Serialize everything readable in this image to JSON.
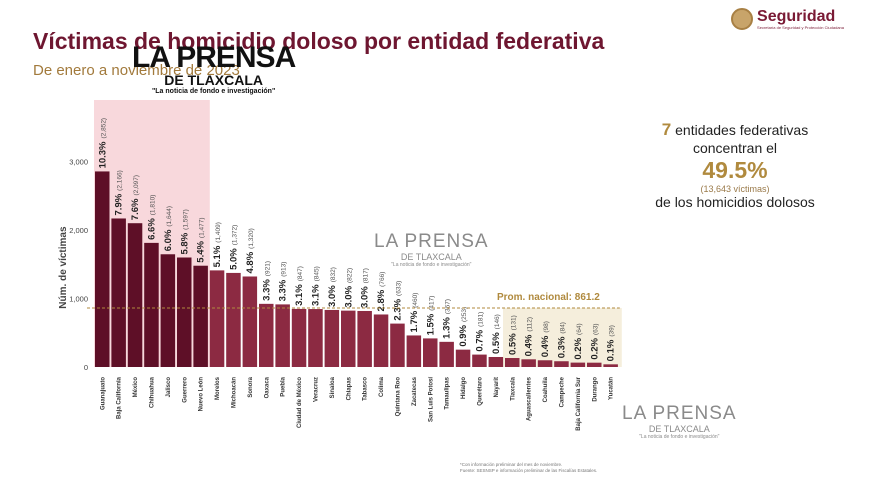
{
  "header": {
    "title": "Víctimas de homicidio doloso por entidad federativa",
    "subtitle": "De enero a noviembre de 2023",
    "logo_name": "Seguridad",
    "logo_tagline": "Secretaría de Seguridad y Protección Ciudadana"
  },
  "watermark": {
    "name": "LA PRENSA",
    "region": "DE TLAXCALA",
    "tagline": "\"La noticia de fondo e investigación\""
  },
  "summary": {
    "count": "7",
    "line1": "entidades federativas",
    "line2": "concentran el",
    "percent": "49.5%",
    "victims": "(13,643 víctimas)",
    "line3": "de los homicidios dolosos"
  },
  "footnote": {
    "line1": "*Con información preliminar del mes de noviembre.",
    "line2": "Fuente: SESNSP e información preliminar de las Fiscalías Estatales."
  },
  "chart_data": {
    "type": "bar",
    "ylabel": "Núm. de víctimas",
    "ylim": [
      0,
      3000
    ],
    "yticks": [
      0,
      1000,
      2000,
      3000
    ],
    "ytick_labels": [
      "0",
      "1,000",
      "2,000",
      "3,000"
    ],
    "grid": false,
    "categories": [
      "Guanajuato",
      "Baja California",
      "México",
      "Chihuahua",
      "Jalisco",
      "Guerrero",
      "Nuevo León",
      "Morelos",
      "Michoacán",
      "Sonora",
      "Oaxaca",
      "Puebla",
      "Ciudad de México",
      "Veracruz",
      "Sinaloa",
      "Chiapas",
      "Tabasco",
      "Colima",
      "Quintana Roo",
      "Zacatecas",
      "San Luis Potosí",
      "Tamaulipas",
      "Hidalgo",
      "Querétaro",
      "Nayarit",
      "Tlaxcala",
      "Aguascalientes",
      "Coahuila",
      "Campeche",
      "Baja California Sur",
      "Durango",
      "Yucatán"
    ],
    "values": [
      2852,
      2166,
      2097,
      1810,
      1644,
      1597,
      1477,
      1409,
      1372,
      1320,
      921,
      913,
      847,
      845,
      832,
      822,
      817,
      766,
      633,
      460,
      417,
      367,
      253,
      181,
      146,
      131,
      112,
      98,
      84,
      64,
      63,
      39
    ],
    "value_labels": [
      "(2,852)",
      "(2,166)",
      "(2,097)",
      "(1,810)",
      "(1,644)",
      "(1,597)",
      "(1,477)",
      "(1,409)",
      "(1,372)",
      "(1,320)",
      "(921)",
      "(913)",
      "(847)",
      "(845)",
      "(832)",
      "(822)",
      "(817)",
      "(766)",
      "(633)",
      "(460)",
      "(417)",
      "(367)",
      "(253)",
      "(181)",
      "(146)",
      "(131)",
      "(112)",
      "(98)",
      "(84)",
      "(64)",
      "(63)",
      "(39)"
    ],
    "percent_labels": [
      "10.3%",
      "7.9%",
      "7.6%",
      "6.6%",
      "6.0%",
      "5.8%",
      "5.4%",
      "5.1%",
      "5.0%",
      "4.8%",
      "3.3%",
      "3.3%",
      "3.1%",
      "3.1%",
      "3.0%",
      "3.0%",
      "3.0%",
      "2.8%",
      "2.3%",
      "1.7%",
      "1.5%",
      "1.3%",
      "0.9%",
      "0.7%",
      "0.5%",
      "0.5%",
      "0.4%",
      "0.4%",
      "0.3%",
      "0.2%",
      "0.2%",
      "0.1%"
    ],
    "highlight_count": 7,
    "reference_line": {
      "label": "Prom. nacional: 861.2",
      "value": 861.2
    },
    "colors": {
      "top": "#5e0f27",
      "rest": "#8c2a42",
      "highlight_bg": "#f8d8dc",
      "reference": "#b08a3e",
      "reference_bg": "#f5eedc"
    }
  }
}
